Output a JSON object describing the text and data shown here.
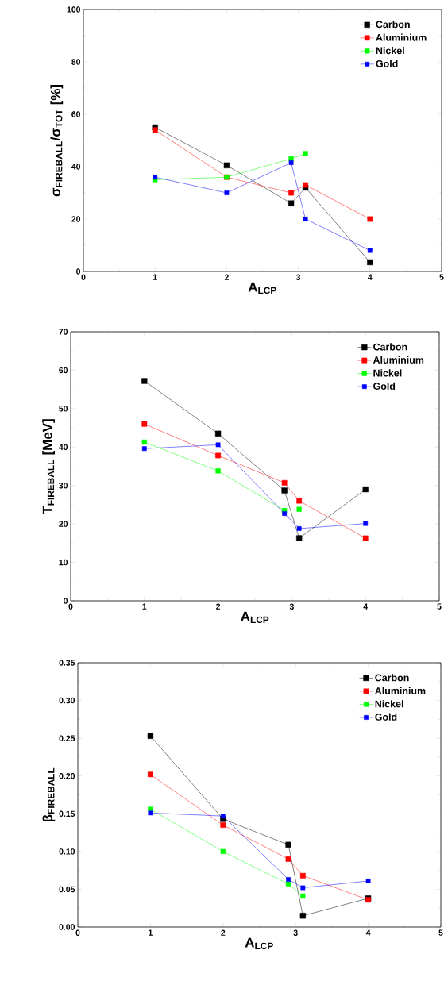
{
  "chart_data": [
    {
      "type": "line",
      "x": [
        1,
        2,
        2.9,
        3.1,
        4
      ],
      "xlabel": "A$_{LCP}$",
      "ylabel": "σ$_{FIREBALL}$/σ$_{TOT}$  [%]",
      "xlim": [
        0,
        5
      ],
      "xticks": [
        0,
        1,
        2,
        3,
        4,
        5
      ],
      "ylim": [
        0,
        100
      ],
      "yticks": [
        0,
        20,
        40,
        60,
        80,
        100
      ],
      "legend": "top right",
      "marker": "square",
      "line_style": "solid",
      "series": [
        {
          "name": "Carbon",
          "color": "#000000",
          "values": [
            55,
            40.5,
            26,
            32,
            3.5
          ]
        },
        {
          "name": "Aluminium",
          "color": "#ff0000",
          "values": [
            54,
            36,
            30,
            33,
            20
          ]
        },
        {
          "name": "Nickel",
          "color": "#00ff00",
          "values": [
            35,
            36,
            43,
            45,
            null
          ]
        },
        {
          "name": "Gold",
          "color": "#0000ff",
          "values": [
            36,
            30,
            41.5,
            20,
            8
          ]
        }
      ]
    },
    {
      "type": "line",
      "x": [
        1,
        2,
        2.9,
        3.1,
        4
      ],
      "xlabel": "A$_{LCP}$",
      "ylabel": "T$_{FIREBALL}$ [MeV]",
      "xlim": [
        0,
        5
      ],
      "xticks": [
        0,
        1,
        2,
        3,
        4,
        5
      ],
      "ylim": [
        0,
        70
      ],
      "yticks": [
        0,
        10,
        20,
        30,
        40,
        50,
        60,
        70
      ],
      "legend": "top right",
      "marker": "square",
      "line_style": "solid",
      "series": [
        {
          "name": "Carbon",
          "color": "#000000",
          "values": [
            57.2,
            43.5,
            28.7,
            16.3,
            29
          ]
        },
        {
          "name": "Aluminium",
          "color": "#ff0000",
          "values": [
            46,
            37.8,
            30.7,
            26,
            16.3
          ]
        },
        {
          "name": "Nickel",
          "color": "#00ff00",
          "values": [
            41.3,
            33.8,
            23.5,
            23.8,
            null
          ]
        },
        {
          "name": "Gold",
          "color": "#0000ff",
          "values": [
            39.6,
            40.6,
            22.7,
            18.8,
            20.1
          ]
        }
      ]
    },
    {
      "type": "line",
      "x": [
        1,
        2,
        2.9,
        3.1,
        4
      ],
      "xlabel": "A$_{LCP}$",
      "ylabel": "β$_{FIREBALL}$",
      "xlim": [
        0,
        5
      ],
      "xticks": [
        0,
        1,
        2,
        3,
        4,
        5
      ],
      "ylim": [
        0,
        0.35
      ],
      "yticks": [
        {
          "value": 0,
          "label": "0.00"
        },
        {
          "value": 0.05,
          "label": "0.05"
        },
        {
          "value": 0.1,
          "label": "0.10"
        },
        {
          "value": 0.15,
          "label": "0.15"
        },
        {
          "value": 0.2,
          "label": "0.20"
        },
        {
          "value": 0.25,
          "label": "0.25"
        },
        {
          "value": 0.3,
          "label": "0.30"
        },
        {
          "value": 0.35,
          "label": "0.35"
        }
      ],
      "legend": "top right",
      "marker": "square",
      "line_style": "solid",
      "series": [
        {
          "name": "Carbon",
          "color": "#000000",
          "values": [
            0.253,
            0.143,
            0.109,
            0.015,
            0.038
          ]
        },
        {
          "name": "Aluminium",
          "color": "#ff0000",
          "values": [
            0.202,
            0.135,
            0.09,
            0.068,
            0.036
          ]
        },
        {
          "name": "Nickel",
          "color": "#00ff00",
          "values": [
            0.156,
            0.1,
            0.057,
            0.041,
            null
          ]
        },
        {
          "name": "Gold",
          "color": "#0000ff",
          "values": [
            0.151,
            0.147,
            0.063,
            0.052,
            0.061
          ]
        }
      ]
    }
  ]
}
